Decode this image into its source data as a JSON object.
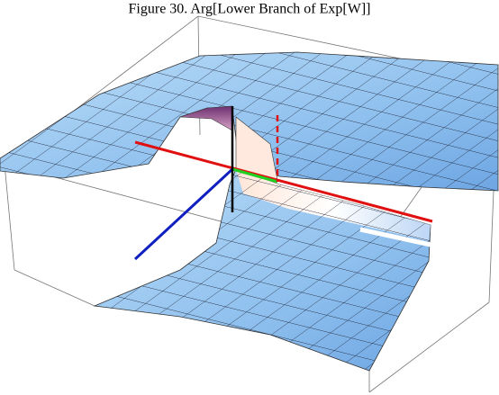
{
  "figure": {
    "title": "Figure 30. Arg[Lower Branch of Exp[W]]"
  }
}
